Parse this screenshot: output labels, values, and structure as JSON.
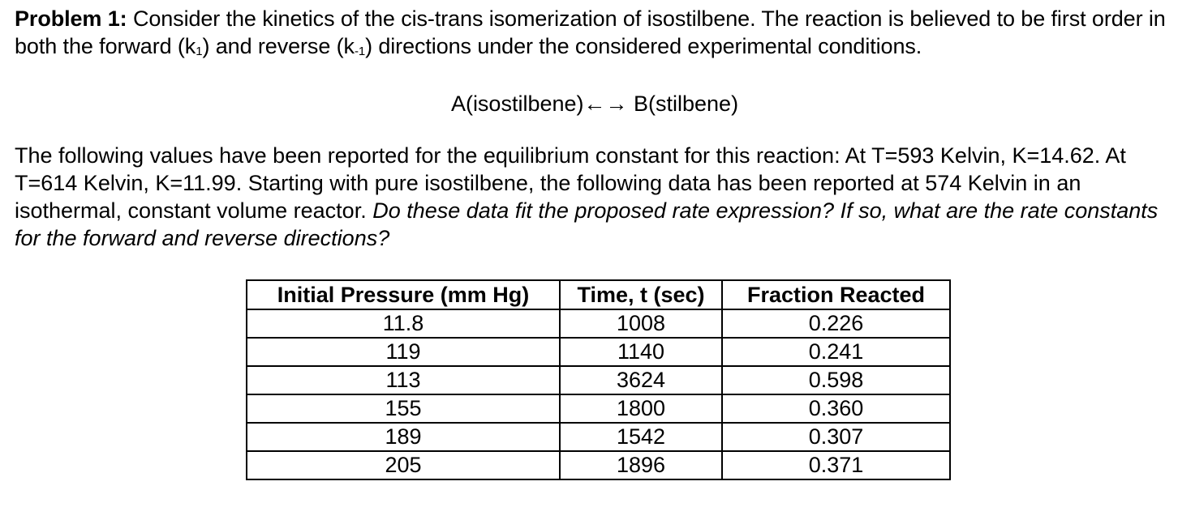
{
  "problem": {
    "label": "Problem 1:",
    "intro_part1": " Consider the kinetics of the cis-trans isomerization of isostilbene. The reaction is believed to be first order in both the forward (k",
    "k_forward_sub": "1",
    "intro_part2": ") and reverse (k",
    "k_reverse_sub": "-1",
    "intro_part3": ") directions under the considered experimental conditions.",
    "reaction": "A(isostilbene)←→ B(stilbene)",
    "values_text": "The following values have been reported for the equilibrium constant for this reaction:  At T=593 Kelvin, K=14.62.  At T=614 Kelvin, K=11.99.  Starting with pure isostilbene, the following data has been reported at 574 Kelvin in an isothermal, constant volume reactor.  ",
    "question": "Do these data fit the proposed rate expression?  If so, what are the rate constants for the forward and reverse directions?"
  },
  "table": {
    "headers": [
      "Initial Pressure (mm Hg)",
      "Time, t (sec)",
      "Fraction Reacted"
    ],
    "rows": [
      [
        "11.8",
        "1008",
        "0.226"
      ],
      [
        "119",
        "1140",
        "0.241"
      ],
      [
        "113",
        "3624",
        "0.598"
      ],
      [
        "155",
        "1800",
        "0.360"
      ],
      [
        "189",
        "1542",
        "0.307"
      ],
      [
        "205",
        "1896",
        "0.371"
      ]
    ]
  }
}
